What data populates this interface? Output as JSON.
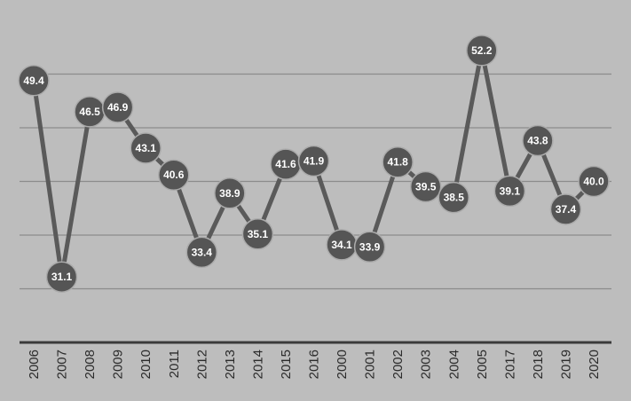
{
  "chart_data": {
    "type": "line",
    "categories": [
      "2006",
      "2007",
      "2008",
      "2009",
      "2010",
      "2011",
      "2012",
      "2013",
      "2014",
      "2015",
      "2016",
      "2000",
      "2001",
      "2002",
      "2003",
      "2004",
      "2005",
      "2017",
      "2018",
      "2019",
      "2020"
    ],
    "series": [
      {
        "values": [
          49.4,
          31.1,
          46.5,
          46.9,
          43.1,
          40.6,
          33.4,
          38.9,
          35.1,
          41.6,
          41.9,
          34.1,
          33.9,
          41.8,
          39.5,
          38.5,
          52.2,
          39.1,
          43.8,
          37.4,
          40.0
        ],
        "labels": [
          "49.4",
          "31.1",
          "46.5",
          "46.9",
          "43.1",
          "40.6",
          "33.4",
          "38.9",
          "35.1",
          "41.6",
          "41.9",
          "34.1",
          "33.9",
          "41.8",
          "39.5",
          "38.5",
          "52.2",
          "39.1",
          "43.8",
          "37.4",
          "40.0"
        ]
      }
    ],
    "ylim": [
      25,
      55
    ],
    "gridlines": [
      30,
      35,
      40,
      45,
      50
    ],
    "grid": true,
    "legend": "none",
    "x_tick_rotation": "vertical",
    "data_labels": "inside-markers",
    "colors": {
      "background": "#bdbdbd",
      "line": "#5a5a5a",
      "marker": "#555555",
      "marker_border": "#ababab",
      "label": "#ffffff",
      "grid": "#8c8c8c",
      "axis": "#3a3a3a",
      "tick_text": "#2b2b2b"
    }
  }
}
